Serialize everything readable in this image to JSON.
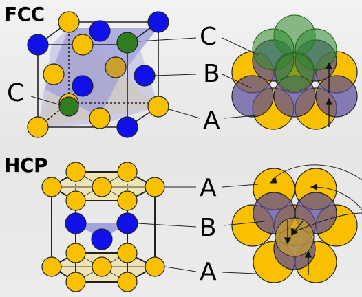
{
  "headings": {
    "fcc": "FCC",
    "hcp": "HCP"
  },
  "labels": {
    "fcc_c_right": "C",
    "fcc_b": "B",
    "fcc_a": "A",
    "fcc_c_left": "C",
    "hcp_a_top": "A",
    "hcp_b": "B",
    "hcp_a_bottom": "A"
  },
  "colors": {
    "layer_a": "#F9C000",
    "layer_b": "#1010E8",
    "layer_c": "#2E7D1E",
    "center_atom": "#C9A030",
    "plane_blue": "#9090D8",
    "plane_yellow": "#EFE3B0"
  }
}
